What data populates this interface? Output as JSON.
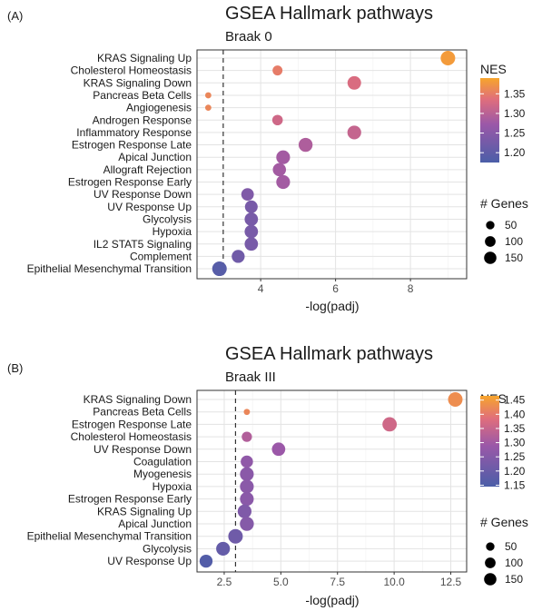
{
  "chart_data": [
    {
      "type": "scatter",
      "panel_label": "(A)",
      "title": "GSEA Hallmark pathways",
      "subtitle": "Braak 0",
      "xlabel": "-log(padj)",
      "ylabel": "",
      "xlim": [
        2.3,
        9.5
      ],
      "xticks": [
        4,
        6,
        8
      ],
      "threshold_x": 3.0,
      "grid": true,
      "legend_position": "right",
      "categories": [
        "KRAS Signaling Up",
        "Cholesterol Homeostasis",
        "KRAS Signaling Down",
        "Pancreas Beta Cells",
        "Angiogenesis",
        "Androgen Response",
        "Inflammatory Response",
        "Estrogen Response Late",
        "Apical Junction",
        "Allograft Rejection",
        "Estrogen Response Early",
        "UV Response Down",
        "UV Response Up",
        "Glycolysis",
        "Hypoxia",
        "IL2 STAT5 Signaling",
        "Complement",
        "Epithelial Mesenchymal Transition"
      ],
      "points": [
        {
          "pathway": "KRAS Signaling Up",
          "x": 9.0,
          "nes": 1.38,
          "genes": 150
        },
        {
          "pathway": "Cholesterol Homeostasis",
          "x": 4.45,
          "nes": 1.35,
          "genes": 50
        },
        {
          "pathway": "KRAS Signaling Down",
          "x": 6.5,
          "nes": 1.33,
          "genes": 125
        },
        {
          "pathway": "Pancreas Beta Cells",
          "x": 2.6,
          "nes": 1.36,
          "genes": 8
        },
        {
          "pathway": "Angiogenesis",
          "x": 2.6,
          "nes": 1.36,
          "genes": 8
        },
        {
          "pathway": "Androgen Response",
          "x": 4.45,
          "nes": 1.32,
          "genes": 60
        },
        {
          "pathway": "Inflammatory Response",
          "x": 6.5,
          "nes": 1.31,
          "genes": 130
        },
        {
          "pathway": "Estrogen Response Late",
          "x": 5.2,
          "nes": 1.29,
          "genes": 135
        },
        {
          "pathway": "Apical Junction",
          "x": 4.6,
          "nes": 1.28,
          "genes": 130
        },
        {
          "pathway": "Allograft Rejection",
          "x": 4.5,
          "nes": 1.28,
          "genes": 115
        },
        {
          "pathway": "Estrogen Response Early",
          "x": 4.6,
          "nes": 1.28,
          "genes": 130
        },
        {
          "pathway": "UV Response Down",
          "x": 3.65,
          "nes": 1.24,
          "genes": 100
        },
        {
          "pathway": "UV Response Up",
          "x": 3.75,
          "nes": 1.23,
          "genes": 105
        },
        {
          "pathway": "Glycolysis",
          "x": 3.75,
          "nes": 1.23,
          "genes": 120
        },
        {
          "pathway": "Hypoxia",
          "x": 3.75,
          "nes": 1.23,
          "genes": 120
        },
        {
          "pathway": "IL2 STAT5 Signaling",
          "x": 3.75,
          "nes": 1.23,
          "genes": 120
        },
        {
          "pathway": "Complement",
          "x": 3.4,
          "nes": 1.22,
          "genes": 110
        },
        {
          "pathway": "Epithelial Mesenchymal Transition",
          "x": 2.9,
          "nes": 1.19,
          "genes": 150
        }
      ],
      "color_legend": {
        "title": "NES",
        "range": [
          1.175,
          1.39
        ],
        "ticks": [
          "1.35",
          "1.30",
          "1.25",
          "1.20"
        ],
        "tick_values": [
          1.35,
          1.3,
          1.25,
          1.2
        ]
      },
      "size_legend": {
        "title": "# Genes",
        "entries": [
          "50",
          "100",
          "150"
        ],
        "entry_values": [
          50,
          100,
          150
        ]
      }
    },
    {
      "type": "scatter",
      "panel_label": "(B)",
      "title": "GSEA Hallmark pathways",
      "subtitle": "Braak III",
      "xlabel": "-log(padj)",
      "ylabel": "",
      "xlim": [
        1.3,
        13.2
      ],
      "xticks": [
        2.5,
        5.0,
        7.5,
        10.0,
        12.5
      ],
      "xtick_labels": [
        "2.5",
        "5.0",
        "7.5",
        "10.0",
        "12.5"
      ],
      "threshold_x": 3.0,
      "grid": true,
      "legend_position": "right",
      "categories": [
        "KRAS Signaling Down",
        "Pancreas Beta Cells",
        "Estrogen Response Late",
        "Cholesterol Homeostasis",
        "UV Response Down",
        "Coagulation",
        "Myogenesis",
        "Hypoxia",
        "Estrogen Response Early",
        "KRAS Signaling Up",
        "Apical Junction",
        "Epithelial Mesenchymal Transition",
        "Glycolysis",
        "UV Response Up"
      ],
      "points": [
        {
          "pathway": "KRAS Signaling Down",
          "x": 12.7,
          "nes": 1.43,
          "genes": 150
        },
        {
          "pathway": "Pancreas Beta Cells",
          "x": 3.5,
          "nes": 1.42,
          "genes": 8
        },
        {
          "pathway": "Estrogen Response Late",
          "x": 9.8,
          "nes": 1.36,
          "genes": 145
        },
        {
          "pathway": "Cholesterol Homeostasis",
          "x": 3.5,
          "nes": 1.32,
          "genes": 55
        },
        {
          "pathway": "UV Response Down",
          "x": 4.9,
          "nes": 1.29,
          "genes": 120
        },
        {
          "pathway": "Coagulation",
          "x": 3.5,
          "nes": 1.27,
          "genes": 95
        },
        {
          "pathway": "Myogenesis",
          "x": 3.5,
          "nes": 1.26,
          "genes": 130
        },
        {
          "pathway": "Hypoxia",
          "x": 3.5,
          "nes": 1.26,
          "genes": 130
        },
        {
          "pathway": "Estrogen Response Early",
          "x": 3.5,
          "nes": 1.26,
          "genes": 130
        },
        {
          "pathway": "KRAS Signaling Up",
          "x": 3.4,
          "nes": 1.24,
          "genes": 130
        },
        {
          "pathway": "Apical Junction",
          "x": 3.5,
          "nes": 1.25,
          "genes": 135
        },
        {
          "pathway": "Epithelial Mesenchymal Transition",
          "x": 3.0,
          "nes": 1.21,
          "genes": 150
        },
        {
          "pathway": "Glycolysis",
          "x": 2.45,
          "nes": 1.19,
          "genes": 130
        },
        {
          "pathway": "UV Response Up",
          "x": 1.7,
          "nes": 1.16,
          "genes": 110
        }
      ],
      "color_legend": {
        "title": "NES",
        "range": [
          1.145,
          1.465
        ],
        "ticks": [
          "1.45",
          "1.40",
          "1.35",
          "1.30",
          "1.25",
          "1.20",
          "1.15"
        ],
        "tick_values": [
          1.45,
          1.4,
          1.35,
          1.3,
          1.25,
          1.2,
          1.15
        ]
      },
      "size_legend": {
        "title": "# Genes",
        "entries": [
          "50",
          "100",
          "150"
        ],
        "entry_values": [
          50,
          100,
          150
        ]
      }
    }
  ],
  "colors": {
    "low": "#4b5ea8",
    "mid": "#b85a9e",
    "high": "#f7a52c",
    "grid": "#e6e6e6",
    "threshold_line": "#333333"
  }
}
